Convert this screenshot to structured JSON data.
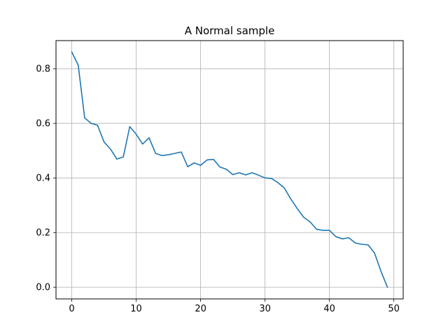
{
  "chart_data": {
    "type": "line",
    "title": "A Normal sample",
    "xlabel": "",
    "ylabel": "",
    "xlim": [
      -2.45,
      51.45
    ],
    "ylim": [
      -0.043,
      0.903
    ],
    "grid": true,
    "xticks": [
      0,
      10,
      20,
      30,
      40,
      50
    ],
    "xtick_labels": [
      "0",
      "10",
      "20",
      "30",
      "40",
      "50"
    ],
    "yticks": [
      0.0,
      0.2,
      0.4,
      0.6,
      0.8
    ],
    "ytick_labels": [
      "0.0",
      "0.2",
      "0.4",
      "0.6",
      "0.8"
    ],
    "series": [
      {
        "color": "#1f77b4",
        "x": [
          0,
          1,
          2,
          3,
          4,
          5,
          6,
          7,
          8,
          9,
          10,
          11,
          12,
          13,
          14,
          15,
          16,
          17,
          18,
          19,
          20,
          21,
          22,
          23,
          24,
          25,
          26,
          27,
          28,
          29,
          30,
          31,
          32,
          33,
          34,
          35,
          36,
          37,
          38,
          39,
          40,
          41,
          42,
          43,
          44,
          45,
          46,
          47,
          48,
          49
        ],
        "y": [
          0.861,
          0.813,
          0.62,
          0.6,
          0.593,
          0.532,
          0.506,
          0.469,
          0.477,
          0.588,
          0.56,
          0.524,
          0.547,
          0.49,
          0.482,
          0.485,
          0.49,
          0.495,
          0.441,
          0.455,
          0.446,
          0.466,
          0.468,
          0.44,
          0.432,
          0.412,
          0.419,
          0.411,
          0.419,
          0.41,
          0.4,
          0.398,
          0.383,
          0.363,
          0.323,
          0.288,
          0.256,
          0.239,
          0.212,
          0.208,
          0.208,
          0.185,
          0.177,
          0.181,
          0.162,
          0.157,
          0.155,
          0.125,
          0.058,
          0.0
        ]
      }
    ]
  }
}
